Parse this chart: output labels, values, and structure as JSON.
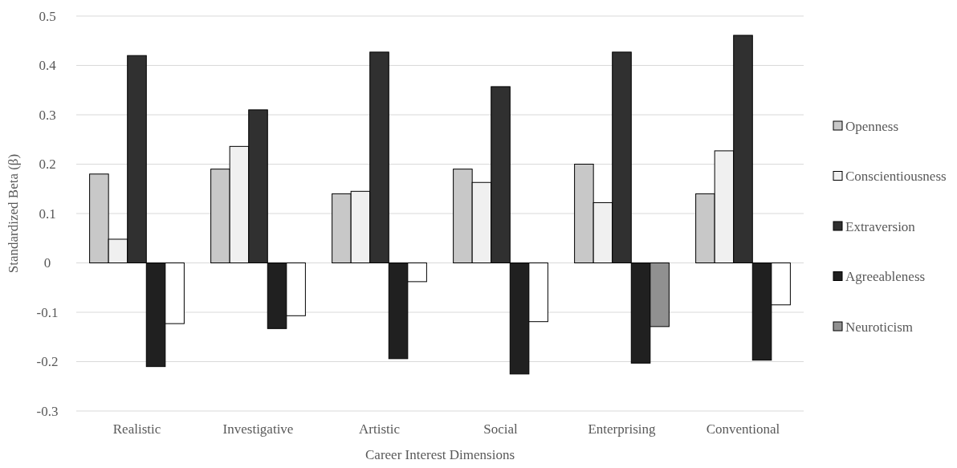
{
  "chart_data": {
    "type": "bar",
    "xlabel": "Career Interest Dimensions",
    "ylabel": "Standardized Beta (β)",
    "categories": [
      "Realistic",
      "Investigative",
      "Artistic",
      "Social",
      "Enterprising",
      "Conventional"
    ],
    "series": [
      {
        "name": "Openness",
        "color": "#c8c8c8",
        "values": [
          0.18,
          0.19,
          0.14,
          0.19,
          0.2,
          0.14
        ]
      },
      {
        "name": "Conscientiousness",
        "color": "#f0f0f0",
        "values": [
          0.048,
          0.236,
          0.145,
          0.163,
          0.122,
          0.227
        ]
      },
      {
        "name": "Extraversion",
        "color": "#303030",
        "values": [
          0.42,
          0.31,
          0.427,
          0.357,
          0.427,
          0.461
        ]
      },
      {
        "name": "Agreeableness",
        "color": "#202020",
        "values": [
          -0.21,
          -0.133,
          -0.194,
          -0.225,
          -0.203,
          -0.197
        ]
      },
      {
        "name": "Neuroticism",
        "color": "#909090",
        "colors": [
          "#ffffff",
          "#ffffff",
          "#ffffff",
          "#ffffff",
          "#909090",
          "#ffffff"
        ],
        "values": [
          -0.123,
          -0.107,
          -0.038,
          -0.119,
          -0.129,
          -0.085
        ]
      }
    ],
    "ylim": [
      -0.3,
      0.5
    ],
    "yticks": [
      -0.3,
      -0.2,
      -0.1,
      0,
      0.1,
      0.2,
      0.3,
      0.4,
      0.5
    ],
    "grid": "y",
    "legend": "right"
  }
}
